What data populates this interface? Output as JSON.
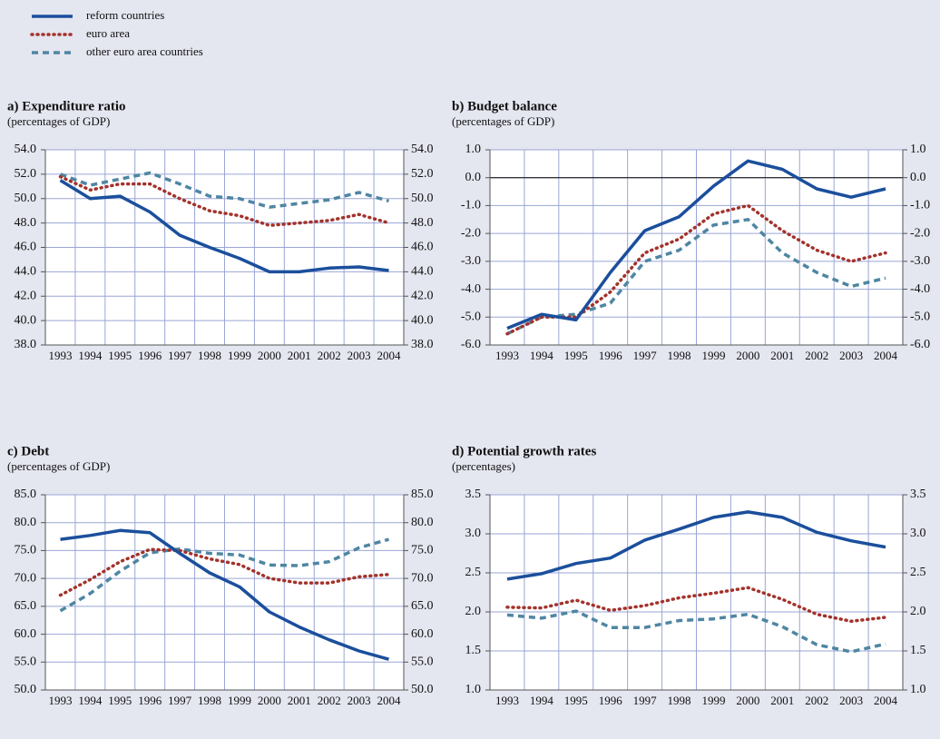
{
  "legend": {
    "series": [
      {
        "name": "reform countries",
        "color": "#1b4f9c",
        "style": "solid"
      },
      {
        "name": "euro area",
        "color": "#a3322b",
        "style": "dotted"
      },
      {
        "name": "other euro area countries",
        "color": "#4e86a2",
        "style": "dashed"
      }
    ]
  },
  "chart_data": [
    {
      "type": "line",
      "title": "a) Expenditure ratio",
      "subtitle": "(percentages of GDP)",
      "categories": [
        "1993",
        "1994",
        "1995",
        "1996",
        "1997",
        "1998",
        "1999",
        "2000",
        "2001",
        "2002",
        "2003",
        "2004"
      ],
      "series": [
        {
          "values": [
            51.5,
            50.0,
            50.2,
            48.9,
            47.0,
            46.0,
            45.1,
            44.0,
            44.0,
            44.3,
            44.4,
            44.1
          ]
        },
        {
          "values": [
            51.8,
            50.7,
            51.2,
            51.2,
            50.0,
            49.0,
            48.6,
            47.8,
            48.0,
            48.2,
            48.7,
            48.0
          ]
        },
        {
          "values": [
            52.0,
            51.1,
            51.6,
            52.1,
            51.2,
            50.2,
            50.0,
            49.3,
            49.6,
            49.9,
            50.5,
            49.8
          ]
        }
      ],
      "ylim": [
        38,
        54
      ],
      "yticks": [
        {
          "value": 38,
          "label": "38.0"
        },
        {
          "value": 40,
          "label": "40.0"
        },
        {
          "value": 42,
          "label": "42.0"
        },
        {
          "value": 44,
          "label": "44.0"
        },
        {
          "value": 46,
          "label": "46.0"
        },
        {
          "value": 48,
          "label": "48.0"
        },
        {
          "value": 50,
          "label": "50.0"
        },
        {
          "value": 52,
          "label": "52.0"
        },
        {
          "value": 54,
          "label": "54.0"
        }
      ],
      "grid": true
    },
    {
      "type": "line",
      "title": "b) Budget balance",
      "subtitle": "(percentages of GDP)",
      "categories": [
        "1993",
        "1994",
        "1995",
        "1996",
        "1997",
        "1998",
        "1999",
        "2000",
        "2001",
        "2002",
        "2003",
        "2004"
      ],
      "series": [
        {
          "values": [
            -5.4,
            -4.9,
            -5.1,
            -3.4,
            -1.9,
            -1.4,
            -0.3,
            0.6,
            0.3,
            -0.4,
            -0.7,
            -0.4
          ]
        },
        {
          "values": [
            -5.6,
            -5.0,
            -5.0,
            -4.1,
            -2.7,
            -2.2,
            -1.3,
            -1.0,
            -1.9,
            -2.6,
            -3.0,
            -2.7
          ]
        },
        {
          "values": [
            -5.6,
            -5.0,
            -4.9,
            -4.5,
            -3.0,
            -2.6,
            -1.7,
            -1.5,
            -2.7,
            -3.4,
            -3.9,
            -3.6
          ]
        }
      ],
      "ylim": [
        -6,
        1
      ],
      "yticks": [
        {
          "value": -6,
          "label": "-6.0"
        },
        {
          "value": -5,
          "label": "-5.0"
        },
        {
          "value": -4,
          "label": "-4.0"
        },
        {
          "value": -3,
          "label": "-3.0"
        },
        {
          "value": -2,
          "label": "-2.0"
        },
        {
          "value": -1,
          "label": "-1.0"
        },
        {
          "value": 0,
          "label": "0.0"
        },
        {
          "value": 1,
          "label": "1.0"
        }
      ],
      "grid": true
    },
    {
      "type": "line",
      "title": "c) Debt",
      "subtitle": "(percentages of GDP)",
      "categories": [
        "1993",
        "1994",
        "1995",
        "1996",
        "1997",
        "1998",
        "1999",
        "2000",
        "2001",
        "2002",
        "2003",
        "2004"
      ],
      "series": [
        {
          "values": [
            77.0,
            77.7,
            78.6,
            78.2,
            74.5,
            71.0,
            68.5,
            64.0,
            61.3,
            59.0,
            57.0,
            55.5
          ]
        },
        {
          "values": [
            67.0,
            69.8,
            73.0,
            75.2,
            75.0,
            73.5,
            72.5,
            70.0,
            69.2,
            69.2,
            70.3,
            70.7
          ]
        },
        {
          "values": [
            64.2,
            67.3,
            71.3,
            74.6,
            75.3,
            74.5,
            74.2,
            72.4,
            72.3,
            73.0,
            75.5,
            77.0
          ]
        }
      ],
      "ylim": [
        50,
        85
      ],
      "yticks": [
        {
          "value": 50,
          "label": "50.0"
        },
        {
          "value": 55,
          "label": "55.0"
        },
        {
          "value": 60,
          "label": "60.0"
        },
        {
          "value": 65,
          "label": "65.0"
        },
        {
          "value": 70,
          "label": "70.0"
        },
        {
          "value": 75,
          "label": "75.0"
        },
        {
          "value": 80,
          "label": "80.0"
        },
        {
          "value": 85,
          "label": "85.0"
        }
      ],
      "grid": true
    },
    {
      "type": "line",
      "title": "d) Potential growth rates",
      "subtitle": "(percentages)",
      "categories": [
        "1993",
        "1994",
        "1995",
        "1996",
        "1997",
        "1998",
        "1999",
        "2000",
        "2001",
        "2002",
        "2003",
        "2004"
      ],
      "series": [
        {
          "values": [
            2.42,
            2.49,
            2.62,
            2.69,
            2.92,
            3.06,
            3.21,
            3.28,
            3.21,
            3.02,
            2.91,
            2.83
          ]
        },
        {
          "values": [
            2.06,
            2.05,
            2.15,
            2.02,
            2.08,
            2.18,
            2.24,
            2.31,
            2.16,
            1.97,
            1.88,
            1.93
          ]
        },
        {
          "values": [
            1.96,
            1.92,
            2.01,
            1.8,
            1.8,
            1.89,
            1.91,
            1.97,
            1.81,
            1.58,
            1.49,
            1.59
          ]
        }
      ],
      "ylim": [
        1,
        3.5
      ],
      "yticks": [
        {
          "value": 1,
          "label": "1.0"
        },
        {
          "value": 1.5,
          "label": "1.5"
        },
        {
          "value": 2,
          "label": "2.0"
        },
        {
          "value": 2.5,
          "label": "2.5"
        },
        {
          "value": 3,
          "label": "3.0"
        },
        {
          "value": 3.5,
          "label": "3.5"
        }
      ],
      "grid": true
    }
  ]
}
